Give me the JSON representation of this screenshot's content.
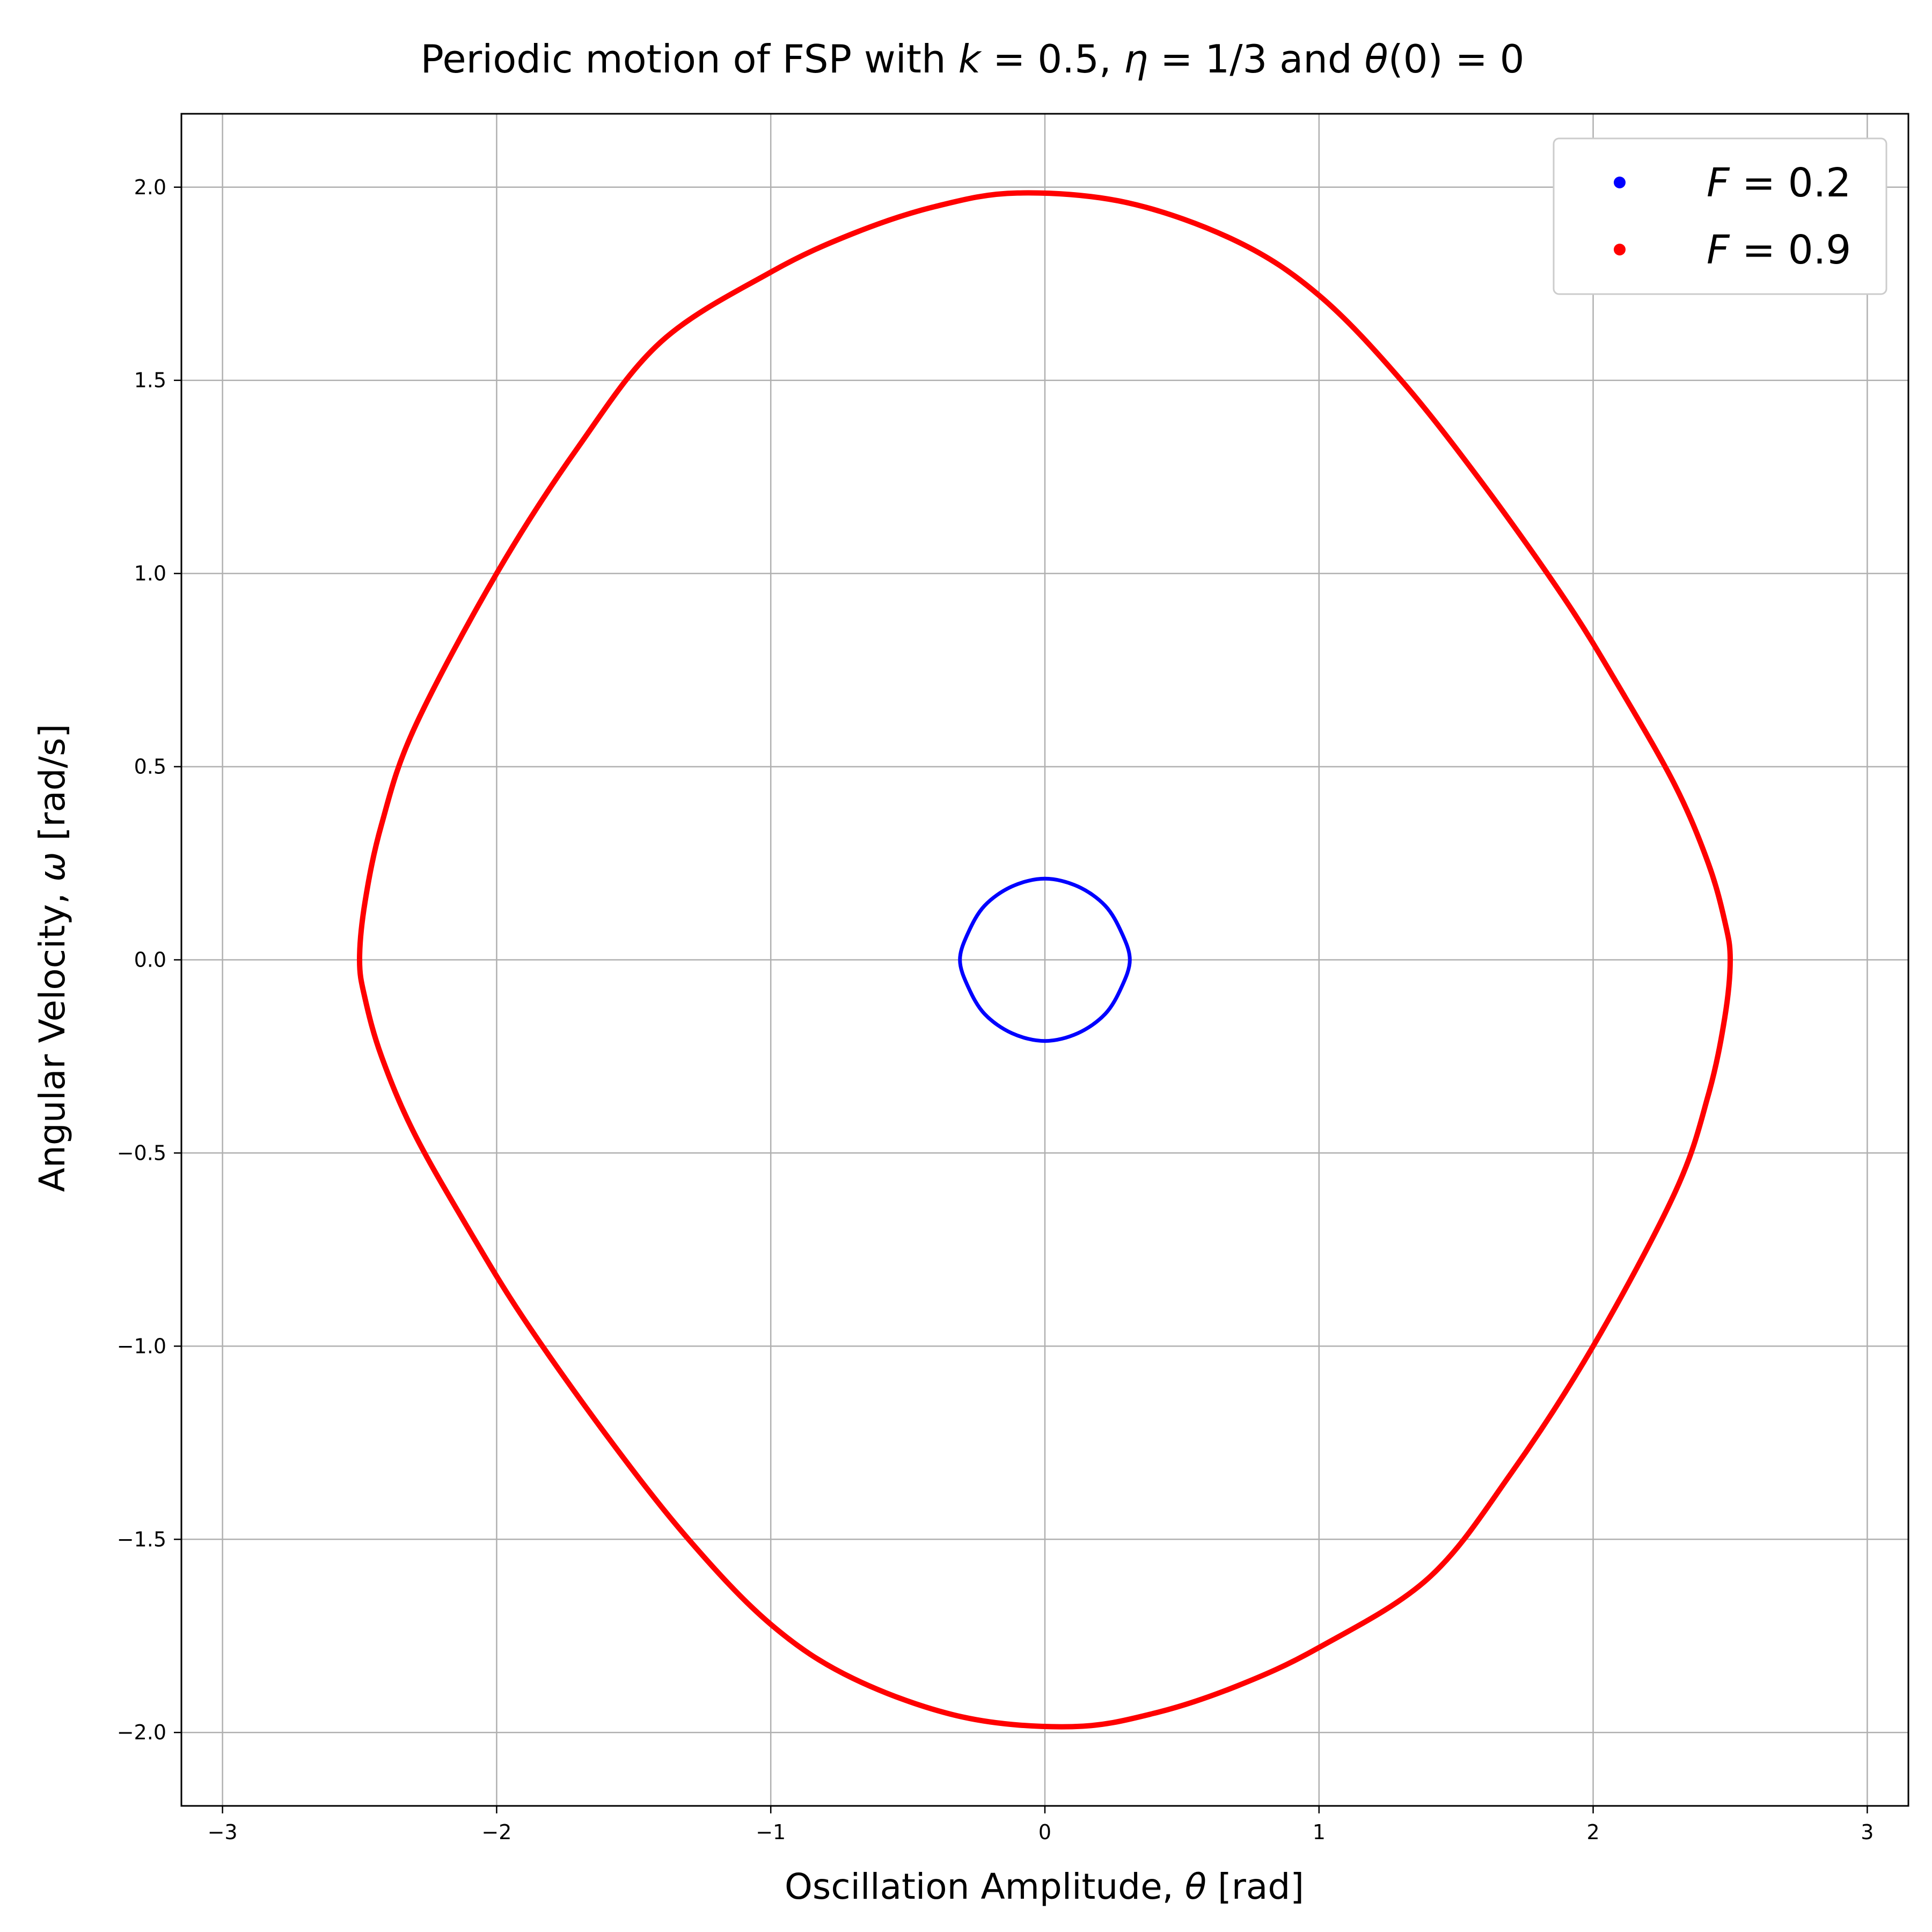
{
  "chart_data": {
    "type": "line",
    "title_parts": [
      {
        "text": "Periodic motion of FSP with ",
        "italic": false
      },
      {
        "text": "k",
        "italic": true
      },
      {
        "text": " = 0.5, ",
        "italic": false
      },
      {
        "text": "η",
        "italic": true
      },
      {
        "text": " = 1/3 and ",
        "italic": false
      },
      {
        "text": "θ",
        "italic": true
      },
      {
        "text": "(0) = 0",
        "italic": false
      }
    ],
    "xlabel_parts": [
      {
        "text": "Oscillation Amplitude, ",
        "italic": false
      },
      {
        "text": "θ",
        "italic": true
      },
      {
        "text": " [rad]",
        "italic": false
      }
    ],
    "ylabel_parts": [
      {
        "text": "Angular Velocity, ",
        "italic": false
      },
      {
        "text": "ω",
        "italic": true
      },
      {
        "text": " [rad/s]",
        "italic": false
      }
    ],
    "xlim": [
      -3.15,
      3.15
    ],
    "ylim": [
      -2.19,
      2.19
    ],
    "xticks": [
      -3,
      -2,
      -1,
      0,
      1,
      2,
      3
    ],
    "xtick_labels": [
      "−3",
      "−2",
      "−1",
      "0",
      "1",
      "2",
      "3"
    ],
    "yticks": [
      -2.0,
      -1.5,
      -1.0,
      -0.5,
      0.0,
      0.5,
      1.0,
      1.5,
      2.0
    ],
    "ytick_labels": [
      "−2.0",
      "−1.5",
      "−1.0",
      "−0.5",
      "0.0",
      "0.5",
      "1.0",
      "1.5",
      "2.0"
    ],
    "grid": true,
    "legend_position": "upper-right",
    "series": [
      {
        "name": "F = 0.2",
        "legend_parts": [
          {
            "text": "F",
            "italic": true
          },
          {
            "text": " = 0.2",
            "italic": false
          }
        ],
        "color": "#0000ff",
        "x": [
          0.0,
          0.12,
          0.22,
          0.28,
          0.31,
          0.28,
          0.22,
          0.12,
          0.0,
          -0.12,
          -0.22,
          -0.28,
          -0.31,
          -0.28,
          -0.22,
          -0.12,
          0.0
        ],
        "y": [
          0.21,
          0.19,
          0.14,
          0.07,
          0.0,
          -0.07,
          -0.14,
          -0.19,
          -0.21,
          -0.19,
          -0.14,
          -0.07,
          0.0,
          0.07,
          0.14,
          0.19,
          0.21
        ]
      },
      {
        "name": "F = 0.9",
        "legend_parts": [
          {
            "text": "F",
            "italic": true
          },
          {
            "text": " = 0.9",
            "italic": false
          }
        ],
        "color": "#ff0000",
        "x": [
          -0.1,
          0.3,
          0.7,
          1.0,
          1.3,
          1.6,
          1.9,
          2.1,
          2.3,
          2.42,
          2.48,
          2.5,
          2.48,
          2.42,
          2.3,
          2.0,
          1.7,
          1.4,
          1.0,
          0.7,
          0.4,
          0.1,
          -0.3,
          -0.7,
          -1.0,
          -1.3,
          -1.6,
          -1.9,
          -2.1,
          -2.3,
          -2.42,
          -2.48,
          -2.5,
          -2.48,
          -2.42,
          -2.3,
          -2.0,
          -1.7,
          -1.4,
          -1.0,
          -0.7,
          -0.4,
          -0.1
        ],
        "y": [
          1.985,
          1.96,
          1.86,
          1.72,
          1.5,
          1.23,
          0.93,
          0.7,
          0.45,
          0.25,
          0.1,
          0.0,
          -0.15,
          -0.35,
          -0.6,
          -1.0,
          -1.33,
          -1.6,
          -1.78,
          -1.88,
          -1.95,
          -1.985,
          -1.96,
          -1.86,
          -1.72,
          -1.5,
          -1.23,
          -0.93,
          -0.7,
          -0.45,
          -0.25,
          -0.1,
          0.0,
          0.15,
          0.35,
          0.6,
          1.0,
          1.33,
          1.6,
          1.78,
          1.88,
          1.95,
          1.985
        ]
      }
    ]
  }
}
